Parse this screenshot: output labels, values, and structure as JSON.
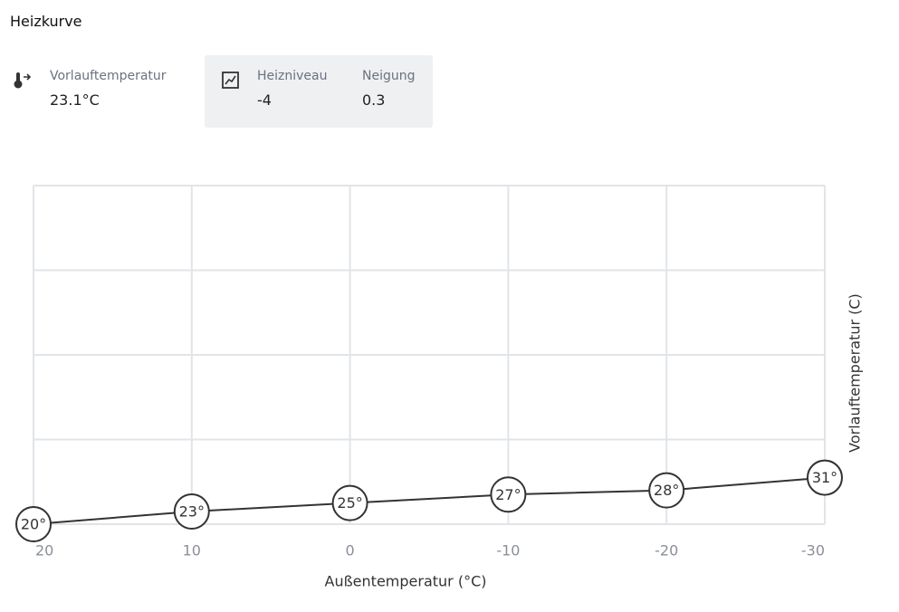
{
  "header": {
    "title": "Heizkurve"
  },
  "stats": [
    {
      "label": "Vorlauftemperatur",
      "value": "23.1°C"
    },
    {
      "label": "Heizniveau",
      "value": "-4"
    },
    {
      "label": "Neigung",
      "value": "0.3"
    }
  ],
  "chart_data": {
    "type": "line",
    "x": [
      20,
      10,
      0,
      -10,
      -20,
      -30
    ],
    "values": [
      20,
      23,
      25,
      27,
      28,
      31
    ],
    "value_labels": [
      "20°",
      "23°",
      "25°",
      "27°",
      "28°",
      "31°"
    ],
    "xlim": [
      20,
      -30
    ],
    "xticks": [
      20,
      10,
      0,
      -10,
      -20,
      -30
    ],
    "ylim": [
      20,
      100
    ],
    "x_label": "Außentemperatur (°C)",
    "y_label": "Vorlauftemperatur (C)",
    "color": "#333333",
    "grid": true
  }
}
